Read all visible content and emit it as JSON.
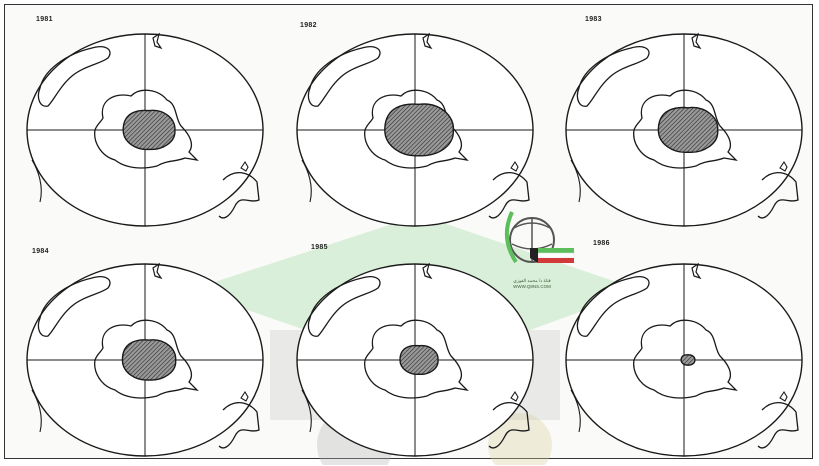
{
  "panels": [
    {
      "year": "1981"
    },
    {
      "year": "1982"
    },
    {
      "year": "1983"
    },
    {
      "year": "1984"
    },
    {
      "year": "1985"
    },
    {
      "year": "1986"
    }
  ],
  "watermark": {
    "line1": "قناة د/ محمد الفوزي",
    "line2": "WWW.Q8NS.COM"
  },
  "colors": {
    "line": "#1a1a1a",
    "hatch_fill": "#6b6b6b",
    "watermark_green": "#5cbf5c",
    "watermark_red": "#d23a3a",
    "watermark_gray": "#9a9a9a"
  }
}
